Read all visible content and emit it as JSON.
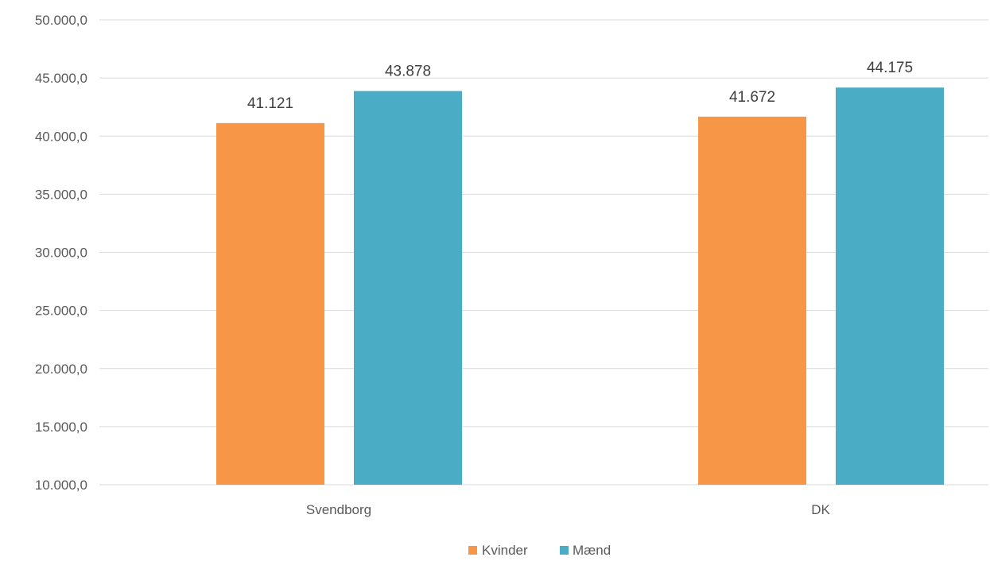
{
  "chart_data": {
    "type": "bar",
    "categories": [
      "Svendborg",
      "DK"
    ],
    "series": [
      {
        "name": "Kvinder",
        "values": [
          41121,
          41672
        ],
        "labels": [
          "41.121",
          "41.672"
        ],
        "color": "#F79646"
      },
      {
        "name": "Mænd",
        "values": [
          43878,
          44175
        ],
        "labels": [
          "43.878",
          "44.175"
        ],
        "color": "#4BACC6"
      }
    ],
    "title": "",
    "xlabel": "",
    "ylabel": "",
    "ylim": [
      10000,
      50000
    ],
    "yticks": [
      10000,
      15000,
      20000,
      25000,
      30000,
      35000,
      40000,
      45000,
      50000
    ],
    "ytick_labels": [
      "10.000,0",
      "15.000,0",
      "20.000,0",
      "25.000,0",
      "30.000,0",
      "35.000,0",
      "40.000,0",
      "45.000,0",
      "50.000,0"
    ],
    "grid": true,
    "gridline_color": "#D9D9D9",
    "legend_position": "bottom"
  }
}
